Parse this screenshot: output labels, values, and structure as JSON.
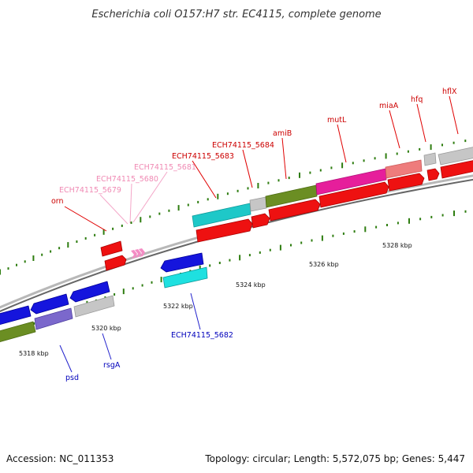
{
  "title": "Escherichia coli O157:H7 str. EC4115, complete genome",
  "footer": {
    "accession": "Accession: NC_011353",
    "summary": "Topology: circular; Length: 5,572,075 bp; Genes: 5,447"
  },
  "colors": {
    "backbone": "#999999",
    "tick": "#2e7d10",
    "label_top": "#cc0000",
    "label_top_pale": "#f08ab4",
    "label_bottom": "#0000bb"
  },
  "tick_labels": [
    "5318 kbp",
    "5320 kbp",
    "5322 kbp",
    "5324 kbp",
    "5326 kbp",
    "5328 kbp"
  ],
  "top_labels": [
    {
      "text": "orn",
      "pale": false
    },
    {
      "text": "ECH74115_5679",
      "pale": true
    },
    {
      "text": "ECH74115_5680",
      "pale": true
    },
    {
      "text": "ECH74115_5681",
      "pale": true
    },
    {
      "text": "ECH74115_5683",
      "pale": false
    },
    {
      "text": "ECH74115_5684",
      "pale": false
    },
    {
      "text": "amiB",
      "pale": false
    },
    {
      "text": "mutL",
      "pale": false
    },
    {
      "text": "miaA",
      "pale": false
    },
    {
      "text": "hfq",
      "pale": false
    },
    {
      "text": "hflX",
      "pale": false
    }
  ],
  "bottom_labels": [
    {
      "text": "psd"
    },
    {
      "text": "rsgA"
    },
    {
      "text": "ECH74115_5682"
    }
  ]
}
